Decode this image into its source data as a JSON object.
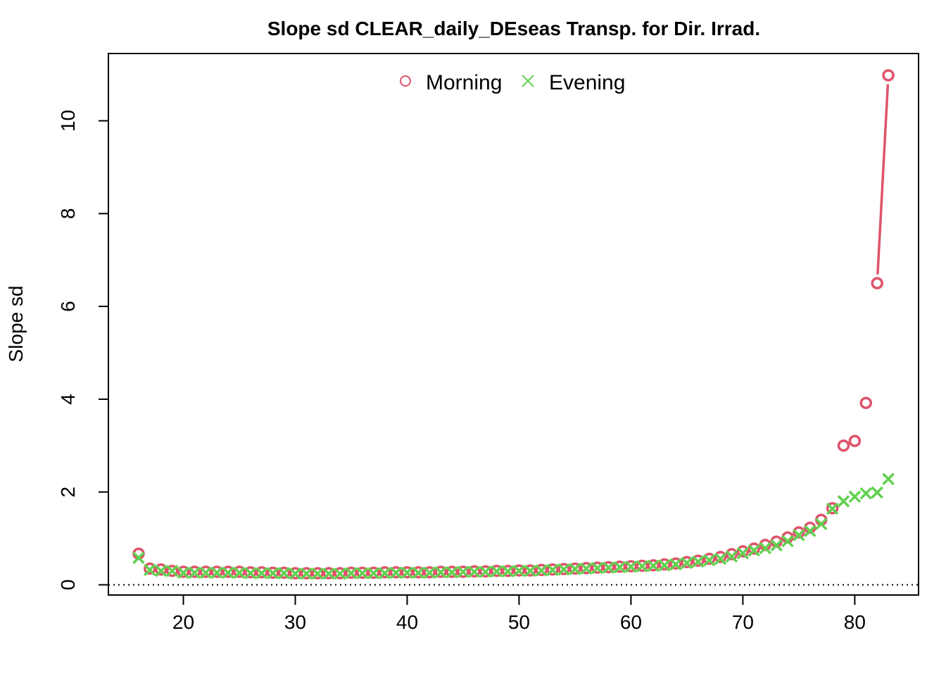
{
  "chart_data": {
    "type": "line",
    "title": "Slope sd CLEAR_daily_DEseas Transp. for Dir. Irrad.",
    "xlabel": "",
    "ylabel": "Slope sd",
    "xlim": [
      13.3,
      85.7
    ],
    "ylim": [
      -0.22,
      11.45
    ],
    "x_ticks": [
      20,
      30,
      40,
      50,
      60,
      70,
      80
    ],
    "y_ticks": [
      0,
      2,
      4,
      6,
      8,
      10
    ],
    "reference_line": {
      "y": 0,
      "style": "dotted"
    },
    "legend_position": "top-center",
    "colors": {
      "Morning": "#DF536B",
      "Evening": "#61D04F"
    },
    "x": [
      16,
      17,
      18,
      19,
      20,
      21,
      22,
      23,
      24,
      25,
      26,
      27,
      28,
      29,
      30,
      31,
      32,
      33,
      34,
      35,
      36,
      37,
      38,
      39,
      40,
      41,
      42,
      43,
      44,
      45,
      46,
      47,
      48,
      49,
      50,
      51,
      52,
      53,
      54,
      55,
      56,
      57,
      58,
      59,
      60,
      61,
      62,
      63,
      64,
      65,
      66,
      67,
      68,
      69,
      70,
      71,
      72,
      73,
      74,
      75,
      76,
      77,
      78,
      79,
      80,
      81,
      82,
      83
    ],
    "series": [
      {
        "name": "Morning",
        "marker": "circle",
        "values": [
          0.67,
          0.35,
          0.33,
          0.3,
          0.28,
          0.28,
          0.28,
          0.28,
          0.28,
          0.28,
          0.27,
          0.27,
          0.26,
          0.26,
          0.25,
          0.25,
          0.25,
          0.25,
          0.25,
          0.26,
          0.26,
          0.26,
          0.27,
          0.27,
          0.27,
          0.27,
          0.27,
          0.28,
          0.28,
          0.28,
          0.29,
          0.29,
          0.3,
          0.3,
          0.31,
          0.31,
          0.32,
          0.33,
          0.34,
          0.35,
          0.36,
          0.37,
          0.38,
          0.39,
          0.4,
          0.41,
          0.42,
          0.44,
          0.46,
          0.49,
          0.52,
          0.56,
          0.6,
          0.66,
          0.72,
          0.78,
          0.86,
          0.93,
          1.02,
          1.13,
          1.23,
          1.4,
          1.65,
          3.0,
          3.1,
          3.92,
          6.5,
          10.98
        ]
      },
      {
        "name": "Evening",
        "marker": "cross",
        "values": [
          0.58,
          0.32,
          0.3,
          0.3,
          0.26,
          0.26,
          0.26,
          0.26,
          0.26,
          0.26,
          0.25,
          0.25,
          0.25,
          0.25,
          0.24,
          0.24,
          0.24,
          0.24,
          0.24,
          0.25,
          0.25,
          0.25,
          0.25,
          0.26,
          0.26,
          0.26,
          0.26,
          0.27,
          0.27,
          0.28,
          0.28,
          0.28,
          0.29,
          0.29,
          0.3,
          0.3,
          0.31,
          0.32,
          0.33,
          0.34,
          0.35,
          0.36,
          0.37,
          0.38,
          0.39,
          0.4,
          0.41,
          0.42,
          0.44,
          0.47,
          0.5,
          0.53,
          0.56,
          0.61,
          0.68,
          0.74,
          0.79,
          0.85,
          0.94,
          1.07,
          1.16,
          1.31,
          1.64,
          1.8,
          1.9,
          1.97,
          1.99,
          2.28
        ]
      }
    ],
    "gaps_in_line": [
      [
        78,
        79
      ],
      [
        80,
        81
      ],
      [
        81,
        82
      ]
    ]
  }
}
